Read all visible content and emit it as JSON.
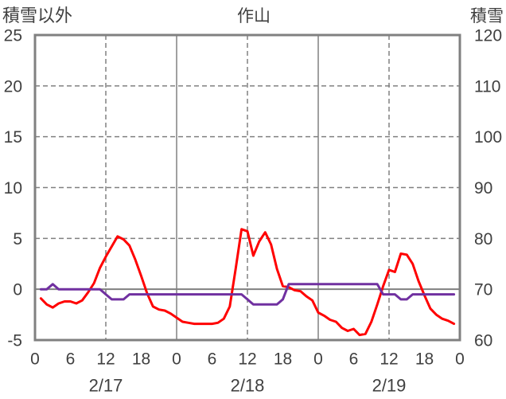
{
  "colors": {
    "grid": "#808080",
    "border": "#808080",
    "text": "#404040",
    "background": "#ffffff"
  },
  "chart_data": {
    "type": "line",
    "title": "作山",
    "y_left_label": "積雪以外",
    "y_right_label": "積雪",
    "ylim_left": [
      -5,
      25
    ],
    "ylim_right": [
      60,
      120
    ],
    "y_left_ticks": [
      "25",
      "20",
      "15",
      "10",
      "5",
      "0",
      "-5"
    ],
    "y_right_ticks": [
      "120",
      "110",
      "100",
      "90",
      "80",
      "70",
      "60"
    ],
    "xlim": [
      "2/17 00:00",
      "2/20 00:00"
    ],
    "x_tick_labels": [
      "0",
      "6",
      "12",
      "18",
      "0",
      "6",
      "12",
      "18",
      "0",
      "6",
      "12",
      "18",
      "0"
    ],
    "date_labels": [
      "2/17",
      "2/18",
      "2/19"
    ],
    "grid": true,
    "x": [
      "2/17 01:00",
      "2/17 02:00",
      "2/17 03:00",
      "2/17 04:00",
      "2/17 05:00",
      "2/17 06:00",
      "2/17 07:00",
      "2/17 08:00",
      "2/17 09:00",
      "2/17 10:00",
      "2/17 11:00",
      "2/17 12:00",
      "2/17 13:00",
      "2/17 14:00",
      "2/17 15:00",
      "2/17 16:00",
      "2/17 17:00",
      "2/17 18:00",
      "2/17 19:00",
      "2/17 20:00",
      "2/17 21:00",
      "2/17 22:00",
      "2/17 23:00",
      "2/18 00:00",
      "2/18 01:00",
      "2/18 02:00",
      "2/18 03:00",
      "2/18 04:00",
      "2/18 05:00",
      "2/18 06:00",
      "2/18 07:00",
      "2/18 08:00",
      "2/18 09:00",
      "2/18 10:00",
      "2/18 11:00",
      "2/18 12:00",
      "2/18 13:00",
      "2/18 14:00",
      "2/18 15:00",
      "2/18 16:00",
      "2/18 17:00",
      "2/18 18:00",
      "2/18 19:00",
      "2/18 20:00",
      "2/18 21:00",
      "2/18 22:00",
      "2/18 23:00",
      "2/19 00:00",
      "2/19 01:00",
      "2/19 02:00",
      "2/19 03:00",
      "2/19 04:00",
      "2/19 05:00",
      "2/19 06:00",
      "2/19 07:00",
      "2/19 08:00",
      "2/19 09:00",
      "2/19 10:00",
      "2/19 11:00",
      "2/19 12:00",
      "2/19 13:00",
      "2/19 14:00",
      "2/19 15:00",
      "2/19 16:00",
      "2/19 17:00",
      "2/19 18:00",
      "2/19 19:00",
      "2/19 20:00",
      "2/19 21:00",
      "2/19 22:00",
      "2/19 23:00"
    ],
    "series": [
      {
        "axis": "left",
        "color": "#ff0000",
        "values": [
          -0.9,
          -1.5,
          -1.8,
          -1.4,
          -1.2,
          -1.2,
          -1.4,
          -1.1,
          -0.3,
          0.6,
          2.1,
          3.2,
          4.2,
          5.2,
          4.9,
          4.3,
          2.9,
          1.3,
          -0.4,
          -1.7,
          -2.0,
          -2.1,
          -2.4,
          -2.8,
          -3.2,
          -3.3,
          -3.4,
          -3.4,
          -3.4,
          -3.4,
          -3.3,
          -2.9,
          -1.7,
          2.0,
          5.9,
          5.7,
          3.3,
          4.7,
          5.6,
          4.4,
          2.0,
          0.3,
          0.2,
          -0.1,
          -0.2,
          -0.7,
          -1.1,
          -2.3,
          -2.6,
          -3.0,
          -3.2,
          -3.8,
          -4.1,
          -3.9,
          -4.5,
          -4.4,
          -3.2,
          -1.5,
          0.3,
          1.9,
          1.7,
          3.5,
          3.4,
          2.5,
          0.8,
          -0.6,
          -1.9,
          -2.5,
          -2.9,
          -3.1,
          -3.4
        ]
      },
      {
        "axis": "right",
        "color": "#7030a0",
        "values": [
          70,
          70,
          71,
          70,
          70,
          70,
          70,
          70,
          70,
          70,
          70,
          69,
          68,
          68,
          68,
          69,
          69,
          69,
          69,
          69,
          69,
          69,
          69,
          69,
          69,
          69,
          69,
          69,
          69,
          69,
          69,
          69,
          69,
          69,
          69,
          68,
          67,
          67,
          67,
          67,
          67,
          68,
          71,
          71,
          71,
          71,
          71,
          71,
          71,
          71,
          71,
          71,
          71,
          71,
          71,
          71,
          71,
          71,
          69,
          69,
          69,
          68,
          68,
          69,
          69,
          69,
          69,
          69,
          69,
          69,
          69
        ]
      }
    ]
  }
}
